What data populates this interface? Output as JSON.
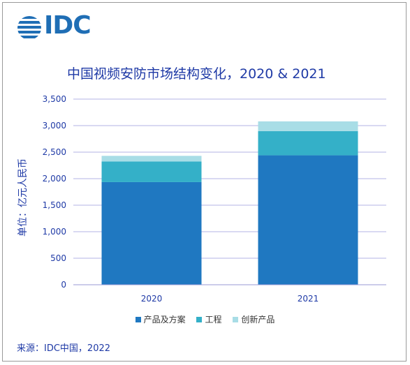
{
  "logo": {
    "text": "IDC"
  },
  "chart_data": {
    "type": "bar",
    "stacked": true,
    "title": "中国视频安防市场结构变化，2020 & 2021",
    "ylabel": "单位：亿元人民币",
    "xlabel": "",
    "categories": [
      "2020",
      "2021"
    ],
    "ylim": [
      0,
      3500
    ],
    "yticks": [
      0,
      500,
      1000,
      1500,
      2000,
      2500,
      3000,
      3500
    ],
    "ytick_labels": [
      "0",
      "500",
      "1,000",
      "1,500",
      "2,000",
      "2,500",
      "3,000",
      "3,500"
    ],
    "grid": true,
    "legend_position": "bottom",
    "series": [
      {
        "name": "产品及方案",
        "color": "#1f78c1",
        "values": [
          1935,
          2440
        ]
      },
      {
        "name": "工程",
        "color": "#34b0c8",
        "values": [
          390,
          455
        ]
      },
      {
        "name": "创新产品",
        "color": "#a8dde6",
        "values": [
          105,
          185
        ]
      }
    ]
  },
  "source": "来源：IDC中国，2022"
}
